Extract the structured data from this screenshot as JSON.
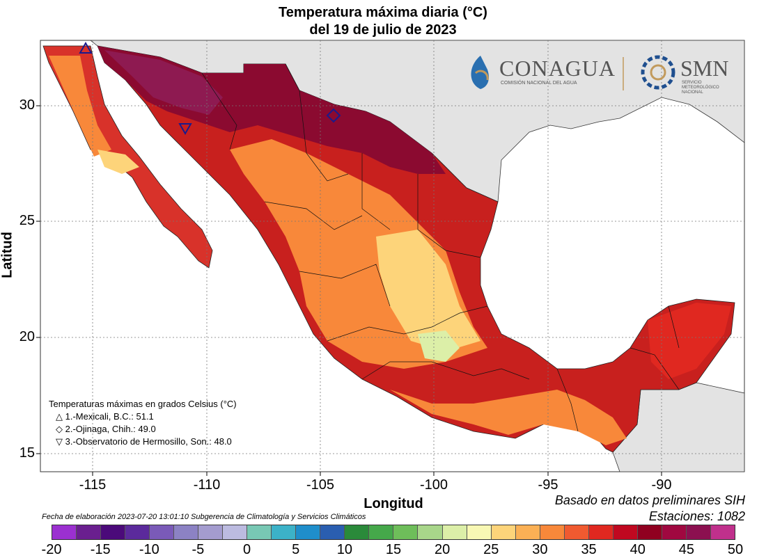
{
  "title_line1": "Temperatura máxima diaria (°C)",
  "title_line2": "del 19 de julio de 2023",
  "axes": {
    "xlabel": "Longitud",
    "ylabel": "Latitud",
    "xticks": [
      "-115",
      "-110",
      "-105",
      "-100",
      "-95",
      "-90"
    ],
    "yticks": [
      "30",
      "25",
      "20",
      "15"
    ]
  },
  "logos": {
    "conagua": "CONAGUA",
    "conagua_sub": "COMISIÓN NACIONAL DEL AGUA",
    "smn": "SMN",
    "smn_sub1": "SERVICIO",
    "smn_sub2": "METEOROLÓGICO",
    "smn_sub3": "NACIONAL"
  },
  "legend": {
    "title": "Temperaturas máximas en grados Celsius (°C)",
    "items": [
      {
        "symbol": "△",
        "text": "1.-Mexicali, B.C.: 51.1"
      },
      {
        "symbol": "◇",
        "text": "2.-Ojinaga, Chih.: 49.0"
      },
      {
        "symbol": "▽",
        "text": "3.-Observatorio de Hermosillo, Son.: 48.0"
      }
    ]
  },
  "source_line1": "Basado en datos preliminares SIH",
  "source_line2": "Estaciones:  1082",
  "footnote": "Fecha de elaboración 2023-07-20 13:01:10 Subgerencia de Climatología y Servicios Climáticos",
  "colorbar": {
    "ticks": [
      "-20",
      "-15",
      "-10",
      "-5",
      "0",
      "5",
      "10",
      "15",
      "20",
      "25",
      "30",
      "35",
      "40",
      "45",
      "50"
    ],
    "colors": [
      "#9b30d0",
      "#6a1f8f",
      "#4b0a7a",
      "#5b2a9c",
      "#7a5ab8",
      "#8c82c4",
      "#a49ccf",
      "#bcbbe0",
      "#78c8b4",
      "#3cb2c8",
      "#1f8ecb",
      "#2a5eb0",
      "#2a8a3a",
      "#45a84a",
      "#6ebe5a",
      "#a8d68a",
      "#dcefa8",
      "#f8f8b4",
      "#fdd47a",
      "#fbb055",
      "#f8883a",
      "#f05a30",
      "#e02820",
      "#c00820",
      "#900020",
      "#a00840",
      "#8c1050",
      "#c0308c"
    ]
  },
  "colors": {
    "land_bg": "#e6e6e6",
    "hot": "#8b0030",
    "warm": "#e03020",
    "orange": "#f8883a",
    "yellow": "#fdd47a",
    "marker": "#1a1a8c"
  }
}
